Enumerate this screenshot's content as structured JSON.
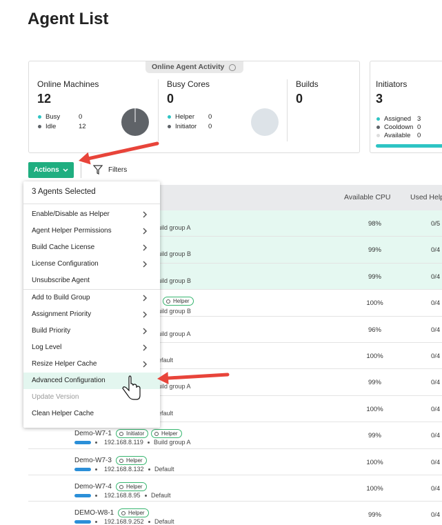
{
  "title": "Agent List",
  "activity": {
    "label": "Online Agent Activity",
    "sections": [
      {
        "title": "Online Machines",
        "value": "12",
        "legend": [
          {
            "label": "Busy",
            "value": "0"
          },
          {
            "label": "Idle",
            "value": "12"
          }
        ]
      },
      {
        "title": "Busy Cores",
        "value": "0",
        "legend": [
          {
            "label": "Helper",
            "value": "0"
          },
          {
            "label": "Initiator",
            "value": "0"
          }
        ]
      },
      {
        "title": "Builds",
        "value": "0"
      }
    ]
  },
  "initiators": {
    "title": "Initiators",
    "value": "3",
    "legend": [
      {
        "label": "Assigned",
        "value": "3"
      },
      {
        "label": "Cooldown",
        "value": "0"
      },
      {
        "label": "Available",
        "value": "0"
      }
    ]
  },
  "toolbar": {
    "actions": "Actions",
    "filters": "Filters"
  },
  "menu": {
    "header": "3 Agents Selected",
    "sections": [
      [
        {
          "label": "Enable/Disable as Helper",
          "submenu": true
        },
        {
          "label": "Agent Helper Permissions",
          "submenu": true
        },
        {
          "label": "Build Cache License",
          "submenu": true
        },
        {
          "label": "License Configuration",
          "submenu": true
        },
        {
          "label": "Unsubscribe Agent",
          "submenu": false
        }
      ],
      [
        {
          "label": "Add to Build Group",
          "submenu": true
        },
        {
          "label": "Assignment Priority",
          "submenu": true
        },
        {
          "label": "Build Priority",
          "submenu": true
        },
        {
          "label": "Log Level",
          "submenu": true
        },
        {
          "label": "Resize Helper Cache",
          "submenu": true
        },
        {
          "label": "Advanced Configuration",
          "submenu": false,
          "state": "active"
        },
        {
          "label": "Update Version",
          "submenu": false,
          "state": "disabled"
        },
        {
          "label": "Clean Helper Cache",
          "submenu": false
        }
      ]
    ]
  },
  "table": {
    "columns": [
      "Available CPU",
      "Used Help"
    ],
    "rows": [
      {
        "group": "uild group A",
        "cpu": "98%",
        "used": "0/5",
        "selected": true
      },
      {
        "group": "uild group B",
        "cpu": "99%",
        "used": "0/4",
        "selected": true
      },
      {
        "group": "uild group B",
        "cpu": "99%",
        "used": "0/4",
        "selected": true
      },
      {
        "tags": [
          "Helper"
        ],
        "group": "uild group B",
        "cpu": "100%",
        "used": "0/4"
      },
      {
        "group": "uild group A",
        "cpu": "96%",
        "used": "0/4"
      },
      {
        "group": "efault",
        "cpu": "100%",
        "used": "0/4"
      },
      {
        "group": "uild group A",
        "cpu": "99%",
        "used": "0/4"
      },
      {
        "group": "efault",
        "cpu": "100%",
        "used": "0/4"
      },
      {
        "name": "Demo-W7-1",
        "tags": [
          "Initiator",
          "Helper"
        ],
        "ip": "192.168.8.119",
        "group": "Build group A",
        "cpu": "99%",
        "used": "0/4"
      },
      {
        "name": "Demo-W7-3",
        "tags": [
          "Helper"
        ],
        "ip": "192.168.8.132",
        "group": "Default",
        "cpu": "100%",
        "used": "0/4"
      },
      {
        "name": "Demo-W7-4",
        "tags": [
          "Helper"
        ],
        "ip": "192.168.8.95",
        "group": "Default",
        "cpu": "100%",
        "used": "0/4"
      },
      {
        "name": "DEMO-W8-1",
        "tags": [
          "Helper"
        ],
        "ip": "192.168.9.252",
        "group": "Default",
        "cpu": "99%",
        "used": "0/4"
      }
    ]
  }
}
